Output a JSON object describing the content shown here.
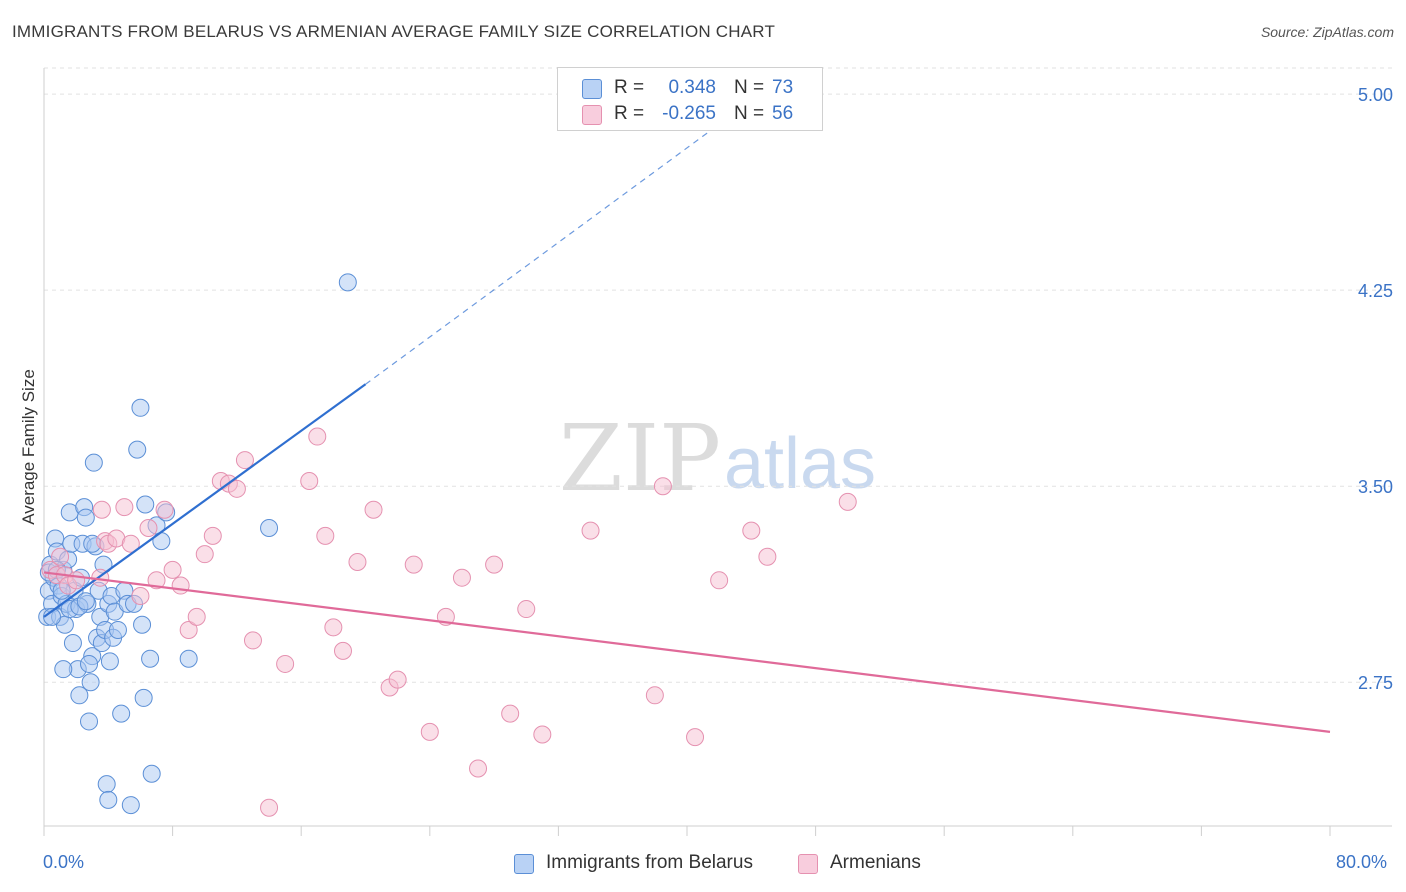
{
  "title": "IMMIGRANTS FROM BELARUS VS ARMENIAN AVERAGE FAMILY SIZE CORRELATION CHART",
  "source": "Source: ZipAtlas.com",
  "watermark": {
    "zip": "ZIP",
    "atlas": "atlas"
  },
  "legend_stats": [
    {
      "r_label": "R =",
      "r_value": "0.348",
      "n_label": "N =",
      "n_value": "73"
    },
    {
      "r_label": "R =",
      "r_value": "-0.265",
      "n_label": "N =",
      "n_value": "56"
    }
  ],
  "bottom_legend": {
    "belarus": "Immigrants from Belarus",
    "armenians": "Armenians"
  },
  "x_axis": {
    "min_label": "0.0%",
    "max_label": "80.0%"
  },
  "colors": {
    "blue_fill": "#a9c8f2",
    "blue_stroke": "#5b8fd6",
    "blue_line": "#2f6fd0",
    "pink_fill": "#f6c0d2",
    "pink_stroke": "#e591b0",
    "pink_line": "#e06a99",
    "value_text": "#3b73c6"
  },
  "chart_data": {
    "type": "scatter",
    "title": "IMMIGRANTS FROM BELARUS VS ARMENIAN AVERAGE FAMILY SIZE CORRELATION CHART",
    "xlabel": "",
    "ylabel": "Average Family Size",
    "xlim": [
      0,
      80
    ],
    "ylim": [
      2.2,
      5.1
    ],
    "y_ticks": [
      2.75,
      3.5,
      4.25,
      5.0
    ],
    "y_tick_labels": [
      "2.75",
      "3.50",
      "4.25",
      "5.00"
    ],
    "x_tick_labels": [
      "0.0%",
      "80.0%"
    ],
    "grid": true,
    "legend_position": "top-center",
    "series": [
      {
        "name": "Immigrants from Belarus",
        "color": "#5b8fd6",
        "trend": {
          "x_solid": [
            0,
            20
          ],
          "y_solid": [
            3.0,
            3.89
          ],
          "x_dashed": [
            20,
            43
          ],
          "y_dashed": [
            3.89,
            4.93
          ]
        },
        "points": [
          [
            0.2,
            3.0
          ],
          [
            0.3,
            3.1
          ],
          [
            0.4,
            3.2
          ],
          [
            0.5,
            3.05
          ],
          [
            0.6,
            3.15
          ],
          [
            0.7,
            3.3
          ],
          [
            0.8,
            3.25
          ],
          [
            0.9,
            3.12
          ],
          [
            1.0,
            3.0
          ],
          [
            1.1,
            3.08
          ],
          [
            1.2,
            3.18
          ],
          [
            1.3,
            2.97
          ],
          [
            1.4,
            3.05
          ],
          [
            1.5,
            3.22
          ],
          [
            1.6,
            3.4
          ],
          [
            1.7,
            3.28
          ],
          [
            1.8,
            2.9
          ],
          [
            1.9,
            3.1
          ],
          [
            2.0,
            3.03
          ],
          [
            2.1,
            2.8
          ],
          [
            2.2,
            2.7
          ],
          [
            2.3,
            3.15
          ],
          [
            2.4,
            3.28
          ],
          [
            2.5,
            3.42
          ],
          [
            2.6,
            3.38
          ],
          [
            2.7,
            3.05
          ],
          [
            2.8,
            2.6
          ],
          [
            2.9,
            2.75
          ],
          [
            3.0,
            2.85
          ],
          [
            3.1,
            3.59
          ],
          [
            3.2,
            3.27
          ],
          [
            3.3,
            2.92
          ],
          [
            3.4,
            3.1
          ],
          [
            3.5,
            3.0
          ],
          [
            3.6,
            2.9
          ],
          [
            3.7,
            3.2
          ],
          [
            3.8,
            2.95
          ],
          [
            3.9,
            2.36
          ],
          [
            4.0,
            3.05
          ],
          [
            4.1,
            2.83
          ],
          [
            4.2,
            3.08
          ],
          [
            4.3,
            2.92
          ],
          [
            4.4,
            3.02
          ],
          [
            4.6,
            2.95
          ],
          [
            4.8,
            2.63
          ],
          [
            5.0,
            3.1
          ],
          [
            5.2,
            3.05
          ],
          [
            5.4,
            2.28
          ],
          [
            5.6,
            3.05
          ],
          [
            5.8,
            3.64
          ],
          [
            6.0,
            3.8
          ],
          [
            6.1,
            2.97
          ],
          [
            6.2,
            2.69
          ],
          [
            6.3,
            3.43
          ],
          [
            6.6,
            2.84
          ],
          [
            6.7,
            2.4
          ],
          [
            7.0,
            3.35
          ],
          [
            7.3,
            3.29
          ],
          [
            7.6,
            3.4
          ],
          [
            9.0,
            2.84
          ],
          [
            14.0,
            3.34
          ],
          [
            18.9,
            4.28
          ],
          [
            0.3,
            3.17
          ],
          [
            0.8,
            3.18
          ],
          [
            1.1,
            3.1
          ],
          [
            1.6,
            3.03
          ],
          [
            2.2,
            3.04
          ],
          [
            2.6,
            3.06
          ],
          [
            2.8,
            2.82
          ],
          [
            3.0,
            3.28
          ],
          [
            0.5,
            3.0
          ],
          [
            1.2,
            2.8
          ],
          [
            4.0,
            2.3
          ]
        ]
      },
      {
        "name": "Armenians",
        "color": "#e591b0",
        "trend": {
          "x": [
            0,
            80
          ],
          "y": [
            3.17,
            2.56
          ]
        },
        "points": [
          [
            0.4,
            3.18
          ],
          [
            0.8,
            3.16
          ],
          [
            1.0,
            3.23
          ],
          [
            1.3,
            3.16
          ],
          [
            1.5,
            3.12
          ],
          [
            2.0,
            3.14
          ],
          [
            3.5,
            3.15
          ],
          [
            3.6,
            3.41
          ],
          [
            3.8,
            3.29
          ],
          [
            4.0,
            3.28
          ],
          [
            4.5,
            3.3
          ],
          [
            5.0,
            3.42
          ],
          [
            5.4,
            3.28
          ],
          [
            6.0,
            3.08
          ],
          [
            6.5,
            3.34
          ],
          [
            7.0,
            3.14
          ],
          [
            7.5,
            3.41
          ],
          [
            8.0,
            3.18
          ],
          [
            8.5,
            3.12
          ],
          [
            9.0,
            2.95
          ],
          [
            9.5,
            3.0
          ],
          [
            10.0,
            3.24
          ],
          [
            10.5,
            3.31
          ],
          [
            11.0,
            3.52
          ],
          [
            11.5,
            3.51
          ],
          [
            12.0,
            3.49
          ],
          [
            12.5,
            3.6
          ],
          [
            13.0,
            2.91
          ],
          [
            14.0,
            2.27
          ],
          [
            15.0,
            2.82
          ],
          [
            16.5,
            3.52
          ],
          [
            17.0,
            3.69
          ],
          [
            17.5,
            3.31
          ],
          [
            18.0,
            2.96
          ],
          [
            18.6,
            2.87
          ],
          [
            19.5,
            3.21
          ],
          [
            20.5,
            3.41
          ],
          [
            21.5,
            2.73
          ],
          [
            22.0,
            2.76
          ],
          [
            23.0,
            3.2
          ],
          [
            24.0,
            2.56
          ],
          [
            25.0,
            3.0
          ],
          [
            26.0,
            3.15
          ],
          [
            27.0,
            2.42
          ],
          [
            28.0,
            3.2
          ],
          [
            29.0,
            2.63
          ],
          [
            30.0,
            3.03
          ],
          [
            31.0,
            2.55
          ],
          [
            34.0,
            3.33
          ],
          [
            38.0,
            2.7
          ],
          [
            38.5,
            3.5
          ],
          [
            40.5,
            2.54
          ],
          [
            42.0,
            3.14
          ],
          [
            44.0,
            3.33
          ],
          [
            45.0,
            3.23
          ],
          [
            50.0,
            3.44
          ]
        ]
      }
    ]
  }
}
